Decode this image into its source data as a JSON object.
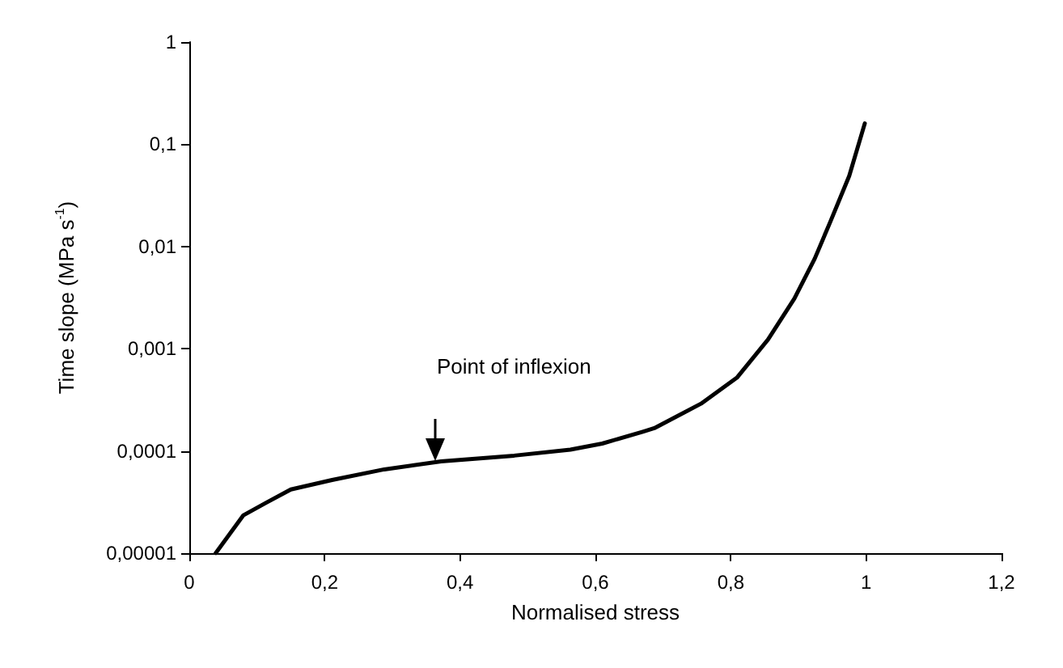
{
  "chart_data": {
    "type": "line",
    "xlabel": "Normalised stress",
    "ylabel": "Time slope (MPa s$^{-1}$)",
    "log": "y",
    "grid": false,
    "line_style": "solid",
    "xlim": [
      0,
      1.2
    ],
    "xticks": [
      0,
      {
        "value": 0.2,
        "label": "0,2"
      },
      {
        "value": 0.4,
        "label": "0,4"
      },
      {
        "value": 0.6,
        "label": "0,6"
      },
      {
        "value": 0.8,
        "label": "0,8"
      },
      1,
      {
        "value": 1.2,
        "label": "1,2"
      }
    ],
    "ylim": [
      1e-05,
      1
    ],
    "yticks": [
      {
        "value": 1e-05,
        "label": "0,00001"
      },
      {
        "value": 0.0001,
        "label": "0,0001"
      },
      {
        "value": 0.001,
        "label": "0,001"
      },
      {
        "value": 0.01,
        "label": "0,01"
      },
      {
        "value": 0.1,
        "label": "0,1"
      },
      1
    ],
    "annotations": [
      "Point of inflexion"
    ],
    "series": [
      {
        "color": "#000000",
        "x": [
          0.039,
          0.08,
          0.113,
          0.15,
          0.211,
          0.288,
          0.372,
          0.48,
          0.563,
          0.61,
          0.671,
          0.687,
          0.756,
          0.809,
          0.855,
          0.894,
          0.924,
          0.947,
          0.975,
          0.998
        ],
        "values": [
          1e-05,
          2.35e-05,
          3.1e-05,
          4.2e-05,
          5.2e-05,
          6.6e-05,
          7.9e-05,
          9e-05,
          0.000103,
          0.000118,
          0.000155,
          0.000167,
          0.00029,
          0.00052,
          0.00123,
          0.0031,
          0.0076,
          0.0174,
          0.049,
          0.16
        ]
      }
    ]
  }
}
